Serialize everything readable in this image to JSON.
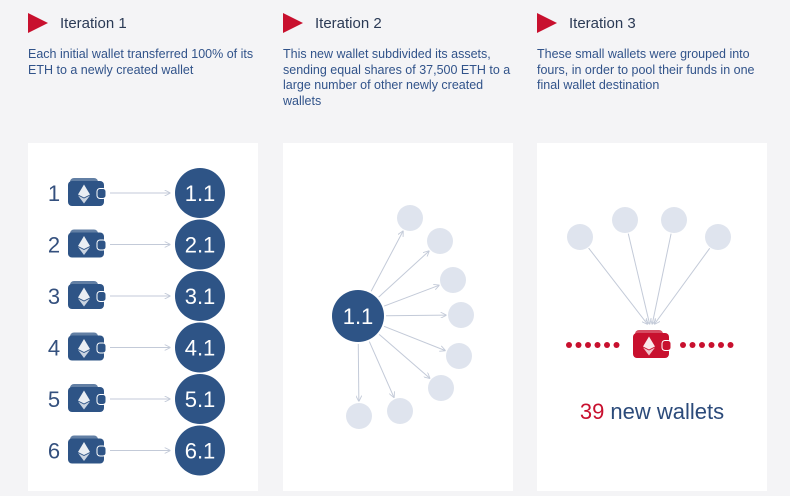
{
  "columns": [
    {
      "title": "Iteration 1",
      "description": "Each initial wallet transferred 100% of its ETH to a newly created wallet"
    },
    {
      "title": "Iteration 2",
      "description": "This new wallet subdivided its assets, sending equal shares of 37,500 ETH to a large number of other newly created wallets"
    },
    {
      "title": "Iteration 3",
      "description": "These small wallets were grouped into fours, in order to pool their funds in one final wallet destination"
    }
  ],
  "iteration1": {
    "rows": [
      {
        "num": "1",
        "target": "1.1"
      },
      {
        "num": "2",
        "target": "2.1"
      },
      {
        "num": "3",
        "target": "3.1"
      },
      {
        "num": "4",
        "target": "4.1"
      },
      {
        "num": "5",
        "target": "5.1"
      },
      {
        "num": "6",
        "target": "6.1"
      }
    ]
  },
  "iteration2": {
    "center_label": "1.1"
  },
  "iteration3": {
    "count": "39",
    "label": "new wallets"
  },
  "colors": {
    "accent_red": "#c8102e",
    "navy": "#2e5486",
    "light_node": "#dfe4ee",
    "background": "#f4f4f6"
  },
  "icons": [
    "play-icon",
    "wallet-eth-icon",
    "wallet-eth-red-icon"
  ]
}
